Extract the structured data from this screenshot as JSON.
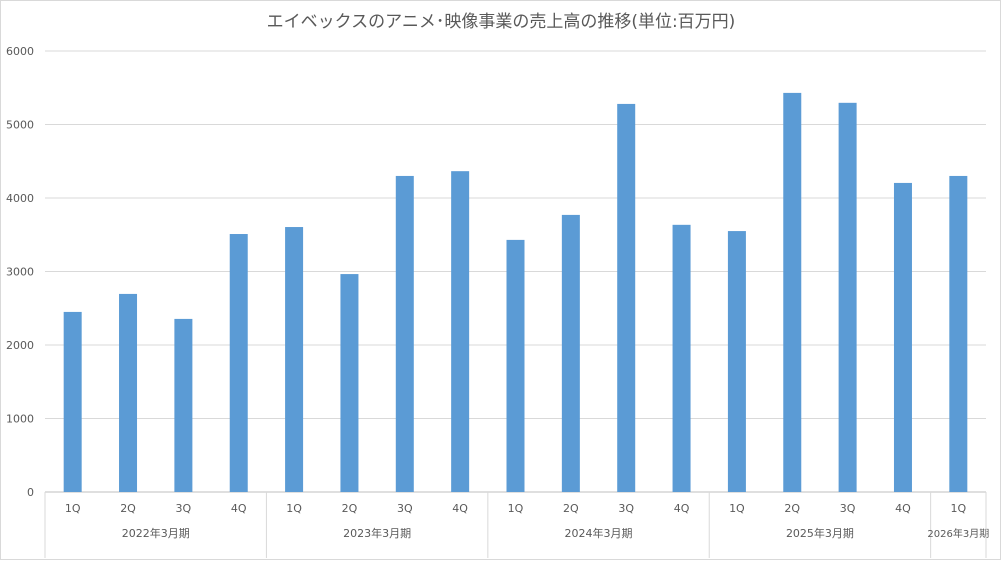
{
  "chart_data": {
    "type": "bar",
    "title": "エイベックスのアニメ･映像事業の売上高の推移(単位:百万円)",
    "xlabel": "",
    "ylabel": "",
    "ylim": [
      0,
      6000
    ],
    "yticks": [
      0,
      1000,
      2000,
      3000,
      4000,
      5000,
      6000
    ],
    "grid": true,
    "color": "#5b9bd5",
    "groups": [
      {
        "label": "2022年3月期",
        "quarters": [
          "1Q",
          "2Q",
          "3Q",
          "4Q"
        ]
      },
      {
        "label": "2023年3月期",
        "quarters": [
          "1Q",
          "2Q",
          "3Q",
          "4Q"
        ]
      },
      {
        "label": "2024年3月期",
        "quarters": [
          "1Q",
          "2Q",
          "3Q",
          "4Q"
        ]
      },
      {
        "label": "2025年3月期",
        "quarters": [
          "1Q",
          "2Q",
          "3Q",
          "4Q"
        ]
      },
      {
        "label": "2026年3月期",
        "quarters": [
          "1Q"
        ]
      }
    ],
    "values": [
      2450,
      2695,
      2355,
      3510,
      3605,
      2965,
      4300,
      4365,
      3430,
      3770,
      5280,
      3635,
      3550,
      5430,
      5295,
      4205,
      4300
    ]
  }
}
